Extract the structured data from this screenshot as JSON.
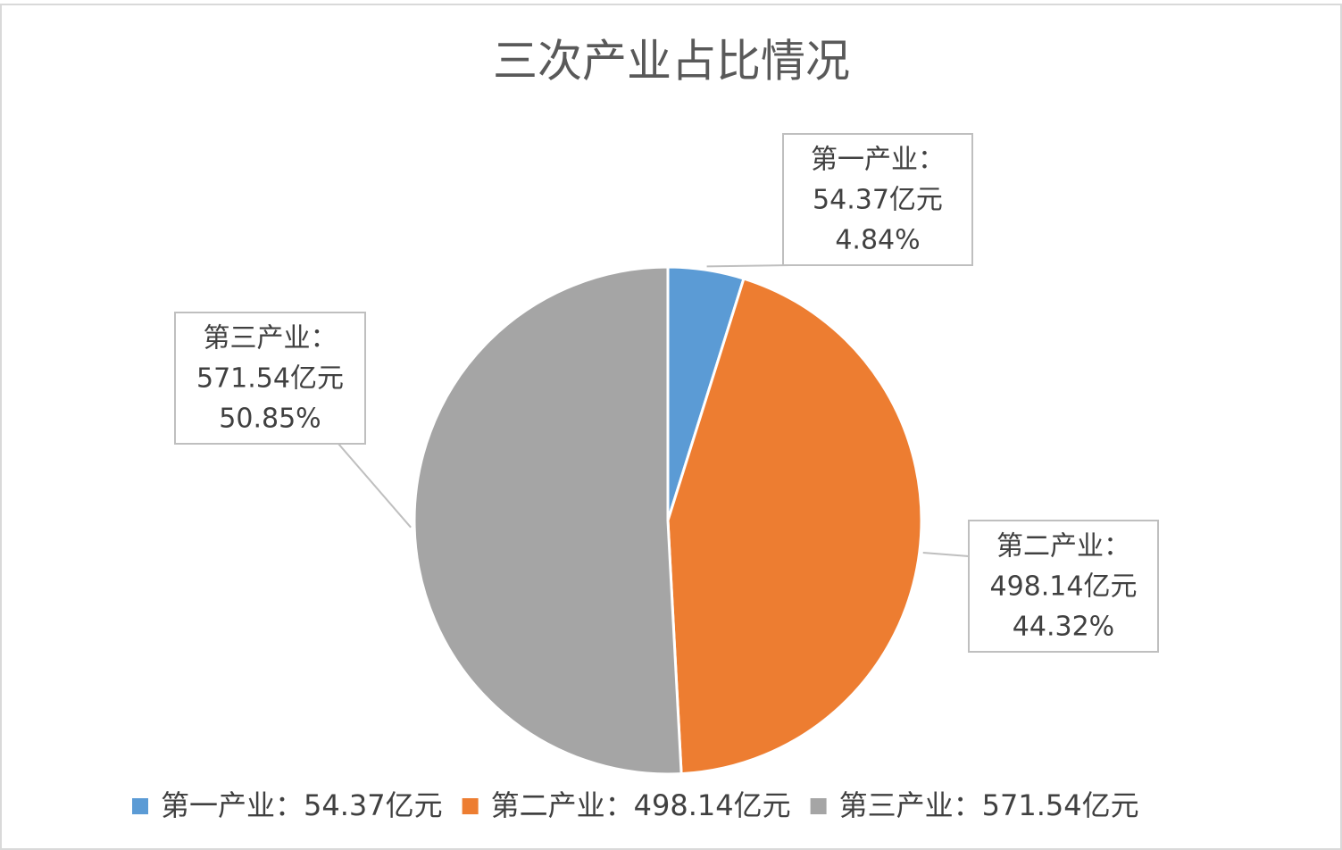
{
  "chart_data": {
    "type": "pie",
    "title": "三次产业占比情况",
    "categories": [
      "第一产业：54.37亿元",
      "第二产业：498.14亿元",
      "第三产业：571.54亿元"
    ],
    "values": [
      54.37,
      498.14,
      571.54
    ],
    "colors": [
      "#5b9bd5",
      "#ed7d31",
      "#a5a5a5"
    ],
    "label_names": [
      "第一产业：",
      "第二产业：",
      "第三产业："
    ],
    "value_labels": [
      "54.37亿元",
      "498.14亿元",
      "571.54亿元"
    ],
    "percents": [
      4.84,
      44.32,
      50.85
    ],
    "percent_labels": [
      "4.84%",
      "44.32%",
      "50.85%"
    ],
    "legend": "bottom"
  }
}
